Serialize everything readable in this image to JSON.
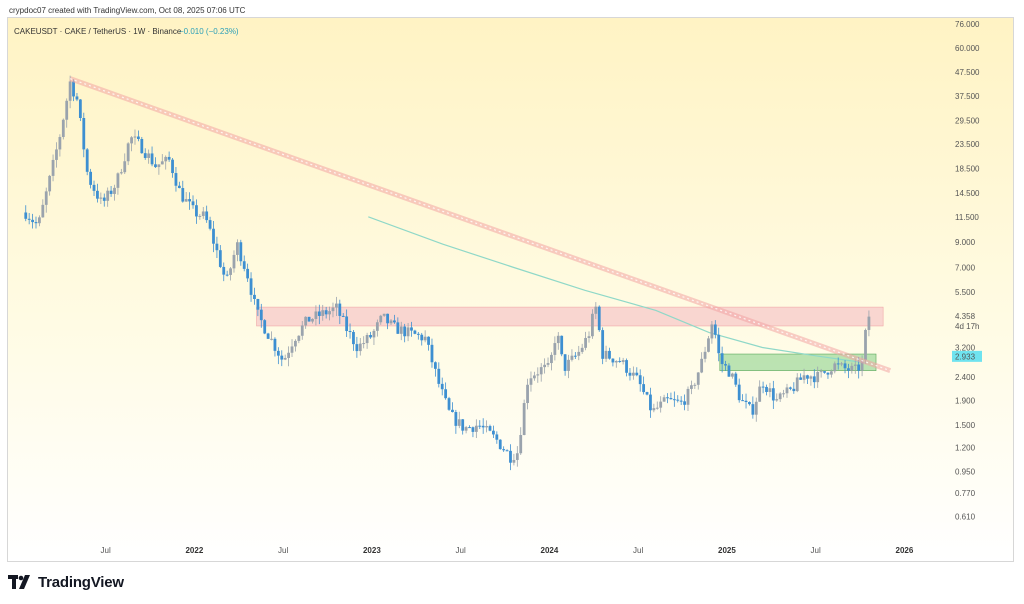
{
  "header": {
    "credit": "crypdoc07 created with TradingView.com, Oct 08, 2025 07:06 UTC"
  },
  "footer": {
    "brand": "TradingView"
  },
  "colors": {
    "bull": "#9aa3ad",
    "bear": "#3d8fd1",
    "trendline": "#f2a4a4",
    "ma": "#8fd8c8",
    "resistance_zone": "#f7c9c9",
    "support_zone": "#9ed89a",
    "price_tag": "#6fe3ef"
  },
  "chart_data": {
    "type": "candlestick",
    "title": "CAKEUSDT · CAKE / TetherUS · 1W · Binance",
    "change_text": "−0.010 (−0.23%)",
    "y_scale": "log",
    "ylim": [
      0.52,
      76.0
    ],
    "y_ticks": [
      "76.000",
      "60.000",
      "47.500",
      "37.500",
      "29.500",
      "23.500",
      "18.500",
      "14.500",
      "11.500",
      "9.000",
      "7.000",
      "5.500",
      "4.358",
      "3.200",
      "2.933",
      "2.400",
      "1.900",
      "1.500",
      "1.200",
      "0.950",
      "0.770",
      "0.610"
    ],
    "y_tick_values": [
      76.0,
      60.0,
      47.5,
      37.5,
      29.5,
      23.5,
      18.5,
      14.5,
      11.5,
      9.0,
      7.0,
      5.5,
      4.358,
      3.2,
      2.933,
      2.4,
      1.9,
      1.5,
      1.2,
      0.95,
      0.77,
      0.61
    ],
    "current_price_label": "4.358",
    "countdown_label": "4d 17h",
    "tag_price": "2.933",
    "x_ticks": [
      {
        "label": "Jul",
        "t": 2021.5,
        "year": false
      },
      {
        "label": "2022",
        "t": 2022.0,
        "year": true
      },
      {
        "label": "Jul",
        "t": 2022.5,
        "year": false
      },
      {
        "label": "2023",
        "t": 2023.0,
        "year": true
      },
      {
        "label": "Jul",
        "t": 2023.5,
        "year": false
      },
      {
        "label": "2024",
        "t": 2024.0,
        "year": true
      },
      {
        "label": "Jul",
        "t": 2024.5,
        "year": false
      },
      {
        "label": "2025",
        "t": 2025.0,
        "year": true
      },
      {
        "label": "Jul",
        "t": 2025.5,
        "year": false
      },
      {
        "label": "2026",
        "t": 2026.0,
        "year": true
      }
    ],
    "xlim": [
      2020.95,
      2026.33
    ],
    "price_path": [
      [
        2021.05,
        12.0
      ],
      [
        2021.12,
        10.5
      ],
      [
        2021.18,
        16.0
      ],
      [
        2021.24,
        25.0
      ],
      [
        2021.3,
        43.0
      ],
      [
        2021.34,
        36.0
      ],
      [
        2021.4,
        17.0
      ],
      [
        2021.48,
        13.0
      ],
      [
        2021.56,
        16.0
      ],
      [
        2021.64,
        25.0
      ],
      [
        2021.7,
        23.0
      ],
      [
        2021.78,
        19.0
      ],
      [
        2021.86,
        20.0
      ],
      [
        2021.92,
        14.5
      ],
      [
        2022.0,
        12.0
      ],
      [
        2022.06,
        11.5
      ],
      [
        2022.12,
        8.5
      ],
      [
        2022.18,
        6.0
      ],
      [
        2022.24,
        8.8
      ],
      [
        2022.3,
        6.5
      ],
      [
        2022.35,
        4.5
      ],
      [
        2022.42,
        3.6
      ],
      [
        2022.5,
        2.8
      ],
      [
        2022.56,
        3.5
      ],
      [
        2022.64,
        4.2
      ],
      [
        2022.74,
        4.5
      ],
      [
        2022.8,
        4.7
      ],
      [
        2022.86,
        3.8
      ],
      [
        2022.92,
        3.2
      ],
      [
        2023.0,
        3.6
      ],
      [
        2023.06,
        4.3
      ],
      [
        2023.12,
        3.9
      ],
      [
        2023.2,
        3.7
      ],
      [
        2023.3,
        3.5
      ],
      [
        2023.38,
        2.2
      ],
      [
        2023.44,
        1.65
      ],
      [
        2023.52,
        1.45
      ],
      [
        2023.6,
        1.5
      ],
      [
        2023.7,
        1.3
      ],
      [
        2023.78,
        1.1
      ],
      [
        2023.82,
        1.15
      ],
      [
        2023.88,
        2.4
      ],
      [
        2023.96,
        2.6
      ],
      [
        2024.0,
        2.6
      ],
      [
        2024.04,
        3.8
      ],
      [
        2024.08,
        2.6
      ],
      [
        2024.16,
        3.0
      ],
      [
        2024.22,
        3.6
      ],
      [
        2024.26,
        4.8
      ],
      [
        2024.3,
        3.0
      ],
      [
        2024.4,
        2.8
      ],
      [
        2024.5,
        2.3
      ],
      [
        2024.58,
        1.7
      ],
      [
        2024.66,
        1.9
      ],
      [
        2024.74,
        1.85
      ],
      [
        2024.8,
        2.1
      ],
      [
        2024.86,
        2.8
      ],
      [
        2024.92,
        4.2
      ],
      [
        2024.96,
        2.8
      ],
      [
        2025.02,
        2.5
      ],
      [
        2025.08,
        1.9
      ],
      [
        2025.14,
        1.7
      ],
      [
        2025.2,
        2.3
      ],
      [
        2025.28,
        1.9
      ],
      [
        2025.36,
        2.1
      ],
      [
        2025.44,
        2.45
      ],
      [
        2025.52,
        2.4
      ],
      [
        2025.6,
        2.7
      ],
      [
        2025.66,
        2.6
      ],
      [
        2025.72,
        2.55
      ],
      [
        2025.76,
        2.7
      ],
      [
        2025.78,
        3.6
      ],
      [
        2025.8,
        4.358
      ]
    ],
    "trendline": [
      [
        2021.3,
        44.5
      ],
      [
        2025.92,
        2.55
      ]
    ],
    "moving_average": [
      [
        2022.98,
        11.5
      ],
      [
        2023.4,
        8.8
      ],
      [
        2023.8,
        7.0
      ],
      [
        2024.2,
        5.6
      ],
      [
        2024.6,
        4.6
      ],
      [
        2024.9,
        3.7
      ],
      [
        2025.2,
        3.2
      ],
      [
        2025.5,
        2.95
      ],
      [
        2025.78,
        2.75
      ]
    ],
    "resistance_zone": {
      "t0": 2022.35,
      "t1": 2025.88,
      "low": 3.95,
      "high": 4.75
    },
    "support_zone": {
      "t0": 2024.96,
      "t1": 2025.84,
      "low": 2.55,
      "high": 3.0
    }
  }
}
